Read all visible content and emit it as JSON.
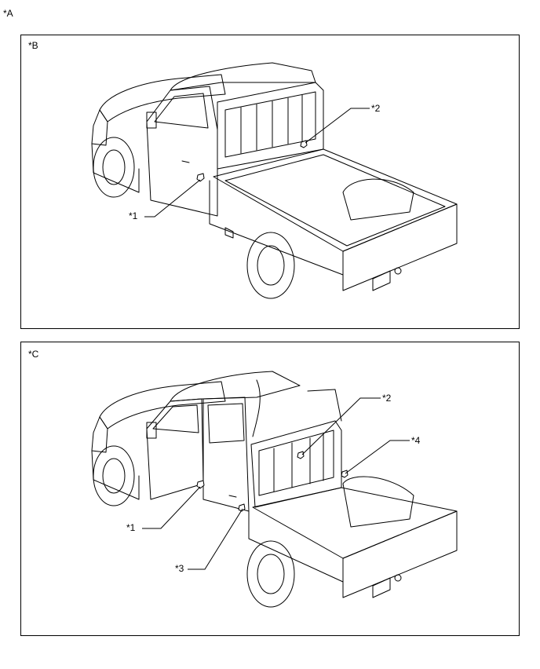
{
  "figure_label": "*A",
  "panels": [
    {
      "label": "*B",
      "callouts": [
        "*1",
        "*2"
      ]
    },
    {
      "label": "*C",
      "callouts": [
        "*1",
        "*2",
        "*3",
        "*4"
      ]
    }
  ]
}
